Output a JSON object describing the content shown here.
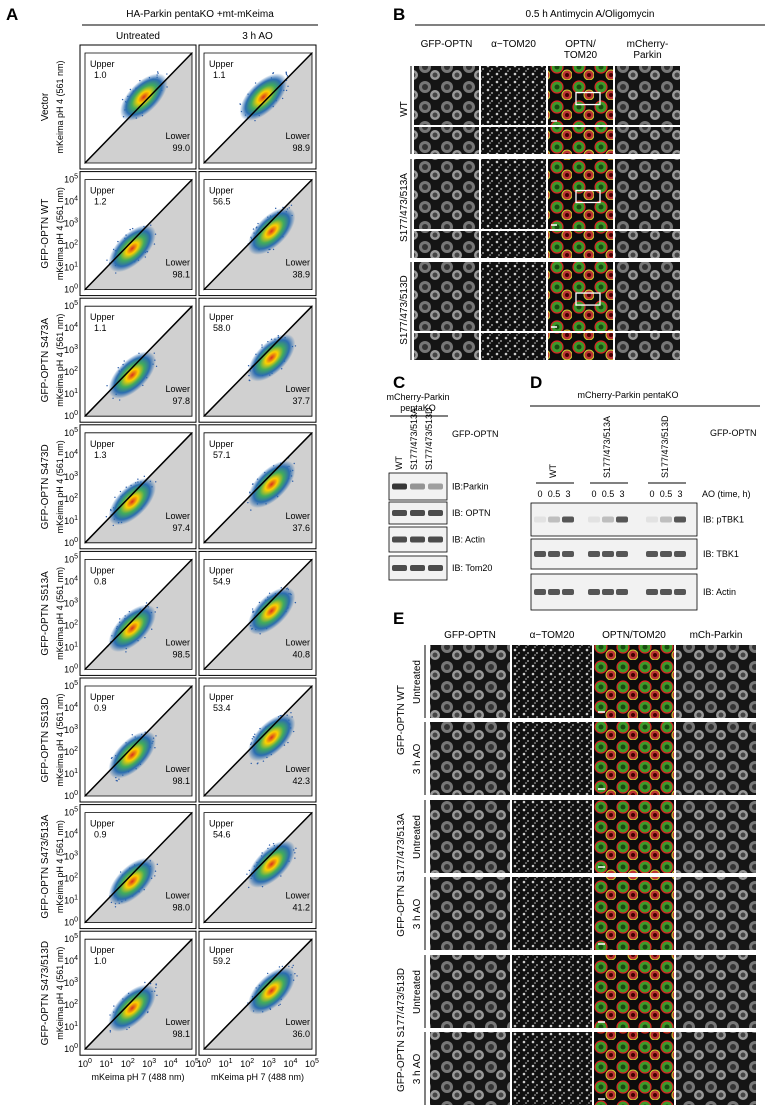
{
  "panel_labels": [
    "A",
    "B",
    "C",
    "D",
    "E"
  ],
  "panel_a": {
    "title": "HA-Parkin pentaKO +mt-mKeima",
    "columns": [
      "Untreated",
      "3 h AO"
    ],
    "y_axis_label": "mKeima pH 4 (561 nm)",
    "x_axis_label": "mKeima pH 7 (488 nm)",
    "tick_base": "10",
    "tick_exponents": [
      "0",
      "1",
      "2",
      "3",
      "4",
      "5"
    ],
    "gate_upper": "Upper",
    "gate_lower": "Lower",
    "rows": [
      {
        "name": "Vector",
        "plots": [
          {
            "upper": "1.0",
            "lower": "99.0"
          },
          {
            "upper": "1.1",
            "lower": "98.9"
          }
        ]
      },
      {
        "name": "GFP-OPTN WT",
        "plots": [
          {
            "upper": "1.2",
            "lower": "98.1"
          },
          {
            "upper": "56.5",
            "lower": "38.9"
          }
        ]
      },
      {
        "name": "GFP-OPTN S473A",
        "plots": [
          {
            "upper": "1.1",
            "lower": "97.8"
          },
          {
            "upper": "58.0",
            "lower": "37.7"
          }
        ]
      },
      {
        "name": "GFP-OPTN S473D",
        "plots": [
          {
            "upper": "1.3",
            "lower": "97.4"
          },
          {
            "upper": "57.1",
            "lower": "37.6"
          }
        ]
      },
      {
        "name": "GFP-OPTN S513A",
        "plots": [
          {
            "upper": "0.8",
            "lower": "98.5"
          },
          {
            "upper": "54.9",
            "lower": "40.8"
          }
        ]
      },
      {
        "name": "GFP-OPTN S513D",
        "plots": [
          {
            "upper": "0.9",
            "lower": "98.1"
          },
          {
            "upper": "53.4",
            "lower": "42.3"
          }
        ]
      },
      {
        "name": "GFP-OPTN S473/513A",
        "plots": [
          {
            "upper": "0.9",
            "lower": "98.0"
          },
          {
            "upper": "54.6",
            "lower": "41.2"
          }
        ]
      },
      {
        "name": "GFP-OPTN S473/513D",
        "plots": [
          {
            "upper": "1.0",
            "lower": "98.1"
          },
          {
            "upper": "59.2",
            "lower": "36.0"
          }
        ]
      }
    ]
  },
  "panel_b": {
    "title": "0.5 h Antimycin A/Oligomycin",
    "columns": [
      [
        "GFP-OPTN"
      ],
      [
        "α−TOM20"
      ],
      [
        "OPTN/",
        "TOM20"
      ],
      [
        "mCherry-",
        "Parkin"
      ]
    ],
    "rows": [
      "WT",
      "S177/473/513A",
      "S177/473/513D"
    ]
  },
  "panel_c": {
    "title": [
      "mCherry-Parkin",
      "pentaKO"
    ],
    "lanes": [
      "WT",
      "S177/473/513A",
      "S177/473/513D"
    ],
    "construct": "GFP-OPTN",
    "blots": [
      "IB:Parkin",
      "IB: OPTN",
      "IB: Actin",
      "IB: Tom20"
    ]
  },
  "panel_d": {
    "title": "mCherry-Parkin pentaKO",
    "groups": [
      "WT",
      "S177/473/513A",
      "S177/473/513D"
    ],
    "construct": "GFP-OPTN",
    "times": [
      "0",
      "0.5",
      "3"
    ],
    "time_label": "AO (time, h)",
    "blots": [
      "IB: pTBK1",
      "IB: TBK1",
      "IB: Actin"
    ]
  },
  "panel_e": {
    "columns": [
      "GFP-OPTN",
      "α−TOM20",
      "OPTN/TOM20",
      "mCh-Parkin"
    ],
    "groups": [
      "GFP-OPTN WT",
      "GFP-OPTN S177/473/513A",
      "GFP-OPTN S177/473/513D"
    ],
    "conditions": [
      "Untreated",
      "3 h AO"
    ]
  }
}
